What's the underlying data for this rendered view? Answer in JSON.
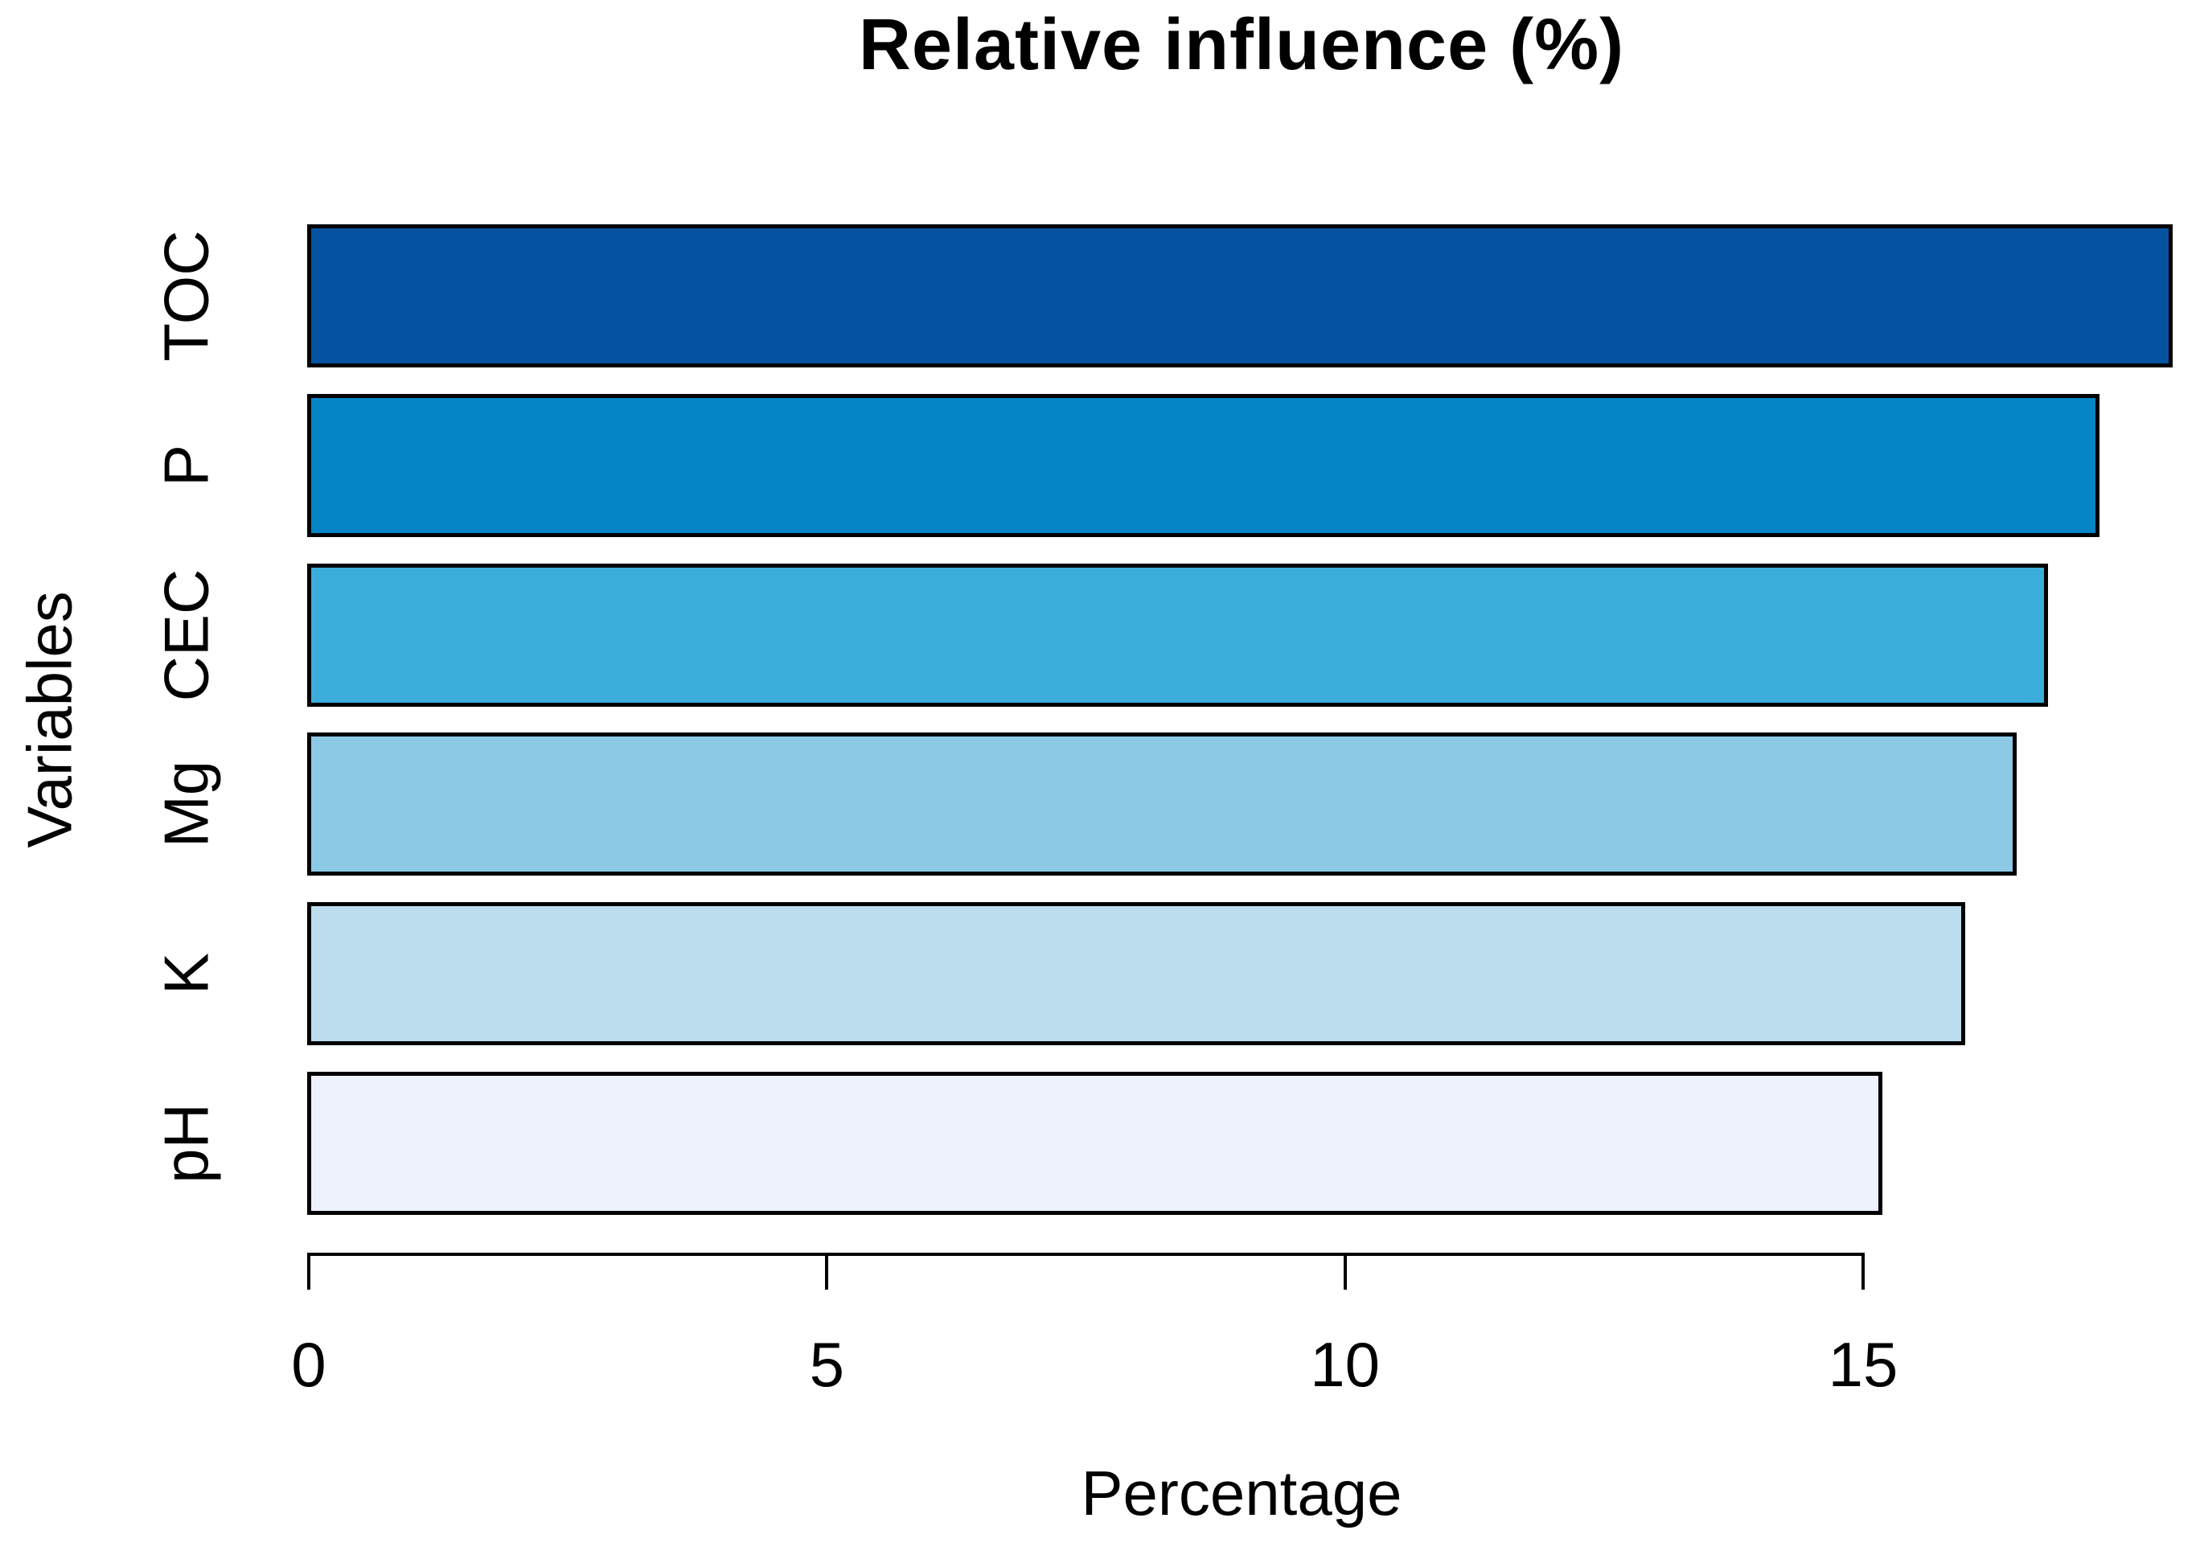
{
  "chart_data": {
    "type": "bar",
    "orientation": "horizontal",
    "title": "Relative influence (%)",
    "xlabel": "Percentage",
    "ylabel": "Variables",
    "categories": [
      "TOC",
      "P",
      "CEC",
      "Mg",
      "K",
      "pH"
    ],
    "values": [
      18.0,
      17.3,
      16.8,
      16.5,
      16.0,
      15.2
    ],
    "bar_colors": [
      "#0553A0",
      "#0584C6",
      "#3AADDB",
      "#8CC9E5",
      "#BCDDEE",
      "#EEF2FC"
    ],
    "bar_border_color": "#000000",
    "x_ticks": [
      0,
      5,
      10,
      15
    ],
    "xlim": [
      0,
      18.3
    ],
    "grid": false,
    "legend_position": "none",
    "background_color": "#FFFFFF",
    "text_color": "#000000"
  }
}
